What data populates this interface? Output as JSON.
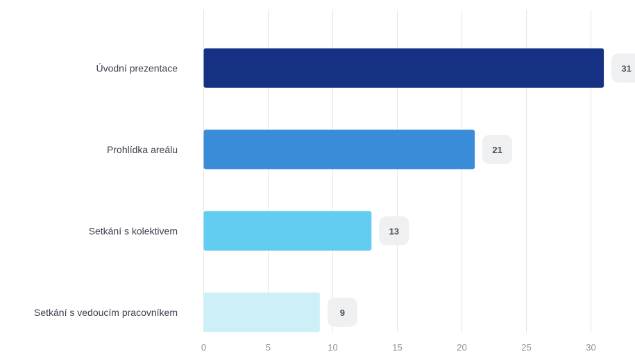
{
  "chart_data": {
    "type": "bar",
    "orientation": "horizontal",
    "categories": [
      "Úvodní prezentace",
      "Prohlídka areálu",
      "Setkání s kolektivem",
      "Setkání s vedoucím pracovníkem"
    ],
    "values": [
      31,
      21,
      13,
      9
    ],
    "colors": [
      "#163083",
      "#3a8cd8",
      "#62cdf0",
      "#cdf0f8"
    ],
    "x_ticks": [
      0,
      5,
      10,
      15,
      20,
      25,
      30
    ],
    "xlim": [
      0,
      33
    ],
    "grid": true,
    "data_labels": true,
    "title": "",
    "xlabel": "",
    "ylabel": ""
  }
}
